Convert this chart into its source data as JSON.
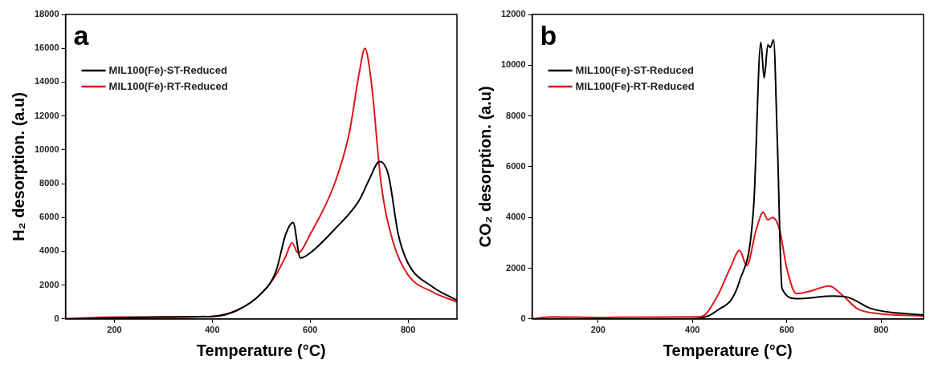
{
  "chart_data": [
    {
      "type": "line",
      "xlabel": "Temperature (°C)",
      "ylabel": "H₂ desorption. (a.u)",
      "annotations": [
        "a"
      ],
      "xlim": [
        100,
        900
      ],
      "xticks": [
        200,
        400,
        600,
        800
      ],
      "ylim": [
        0,
        18000
      ],
      "yticks": [
        0,
        2000,
        4000,
        6000,
        8000,
        10000,
        12000,
        14000,
        16000,
        18000
      ],
      "grid": false,
      "legend": "top left",
      "marker": "none",
      "line_style": "solid",
      "series": [
        {
          "name": "MIL100(Fe)-ST-Reduced",
          "color": "#000000",
          "x": [
            100,
            200,
            300,
            400,
            450,
            500,
            530,
            550,
            565,
            580,
            600,
            650,
            700,
            720,
            742,
            760,
            780,
            800,
            850,
            900
          ],
          "values": [
            0,
            50,
            120,
            150,
            500,
            1500,
            2800,
            5000,
            5700,
            3600,
            3900,
            5300,
            7000,
            8200,
            9300,
            8500,
            5000,
            3300,
            1900,
            1100
          ]
        },
        {
          "name": "MIL100(Fe)-RT-Reduced",
          "color": "#e0161b",
          "x": [
            100,
            200,
            300,
            400,
            450,
            500,
            530,
            550,
            563,
            575,
            600,
            650,
            680,
            700,
            712,
            725,
            745,
            770,
            800,
            850,
            900
          ],
          "values": [
            0,
            110,
            100,
            150,
            500,
            1500,
            2600,
            3700,
            4500,
            3900,
            5000,
            8000,
            11000,
            14500,
            16000,
            14000,
            8000,
            4500,
            2600,
            1600,
            1000
          ]
        }
      ]
    },
    {
      "type": "line",
      "xlabel": "Temperature (°C)",
      "ylabel": "CO₂ desorption. (a.u)",
      "annotations": [
        "b"
      ],
      "xlim": [
        60,
        890
      ],
      "xticks": [
        200,
        400,
        600,
        800
      ],
      "ylim": [
        0,
        12000
      ],
      "yticks": [
        0,
        2000,
        4000,
        6000,
        8000,
        10000,
        12000
      ],
      "grid": false,
      "legend": "top left",
      "marker": "none",
      "line_style": "solid",
      "series": [
        {
          "name": "MIL100(Fe)-ST-Reduced",
          "color": "#000000",
          "x": [
            60,
            400,
            450,
            500,
            530,
            545,
            552,
            560,
            565,
            572,
            580,
            590,
            620,
            700,
            730,
            780,
            890
          ],
          "values": [
            0,
            0,
            300,
            1500,
            4500,
            10900,
            9500,
            10800,
            10700,
            11000,
            7000,
            1200,
            800,
            900,
            850,
            400,
            150
          ]
        },
        {
          "name": "MIL100(Fe)-RT-Reduced",
          "color": "#e0161b",
          "x": [
            60,
            100,
            200,
            400,
            420,
            450,
            480,
            500,
            515,
            535,
            550,
            560,
            570,
            585,
            600,
            620,
            650,
            690,
            720,
            750,
            800,
            890
          ],
          "values": [
            0,
            80,
            60,
            80,
            100,
            800,
            2000,
            2700,
            2100,
            3500,
            4200,
            3900,
            4000,
            3500,
            2000,
            1000,
            1100,
            1300,
            900,
            400,
            200,
            120
          ]
        }
      ]
    }
  ]
}
